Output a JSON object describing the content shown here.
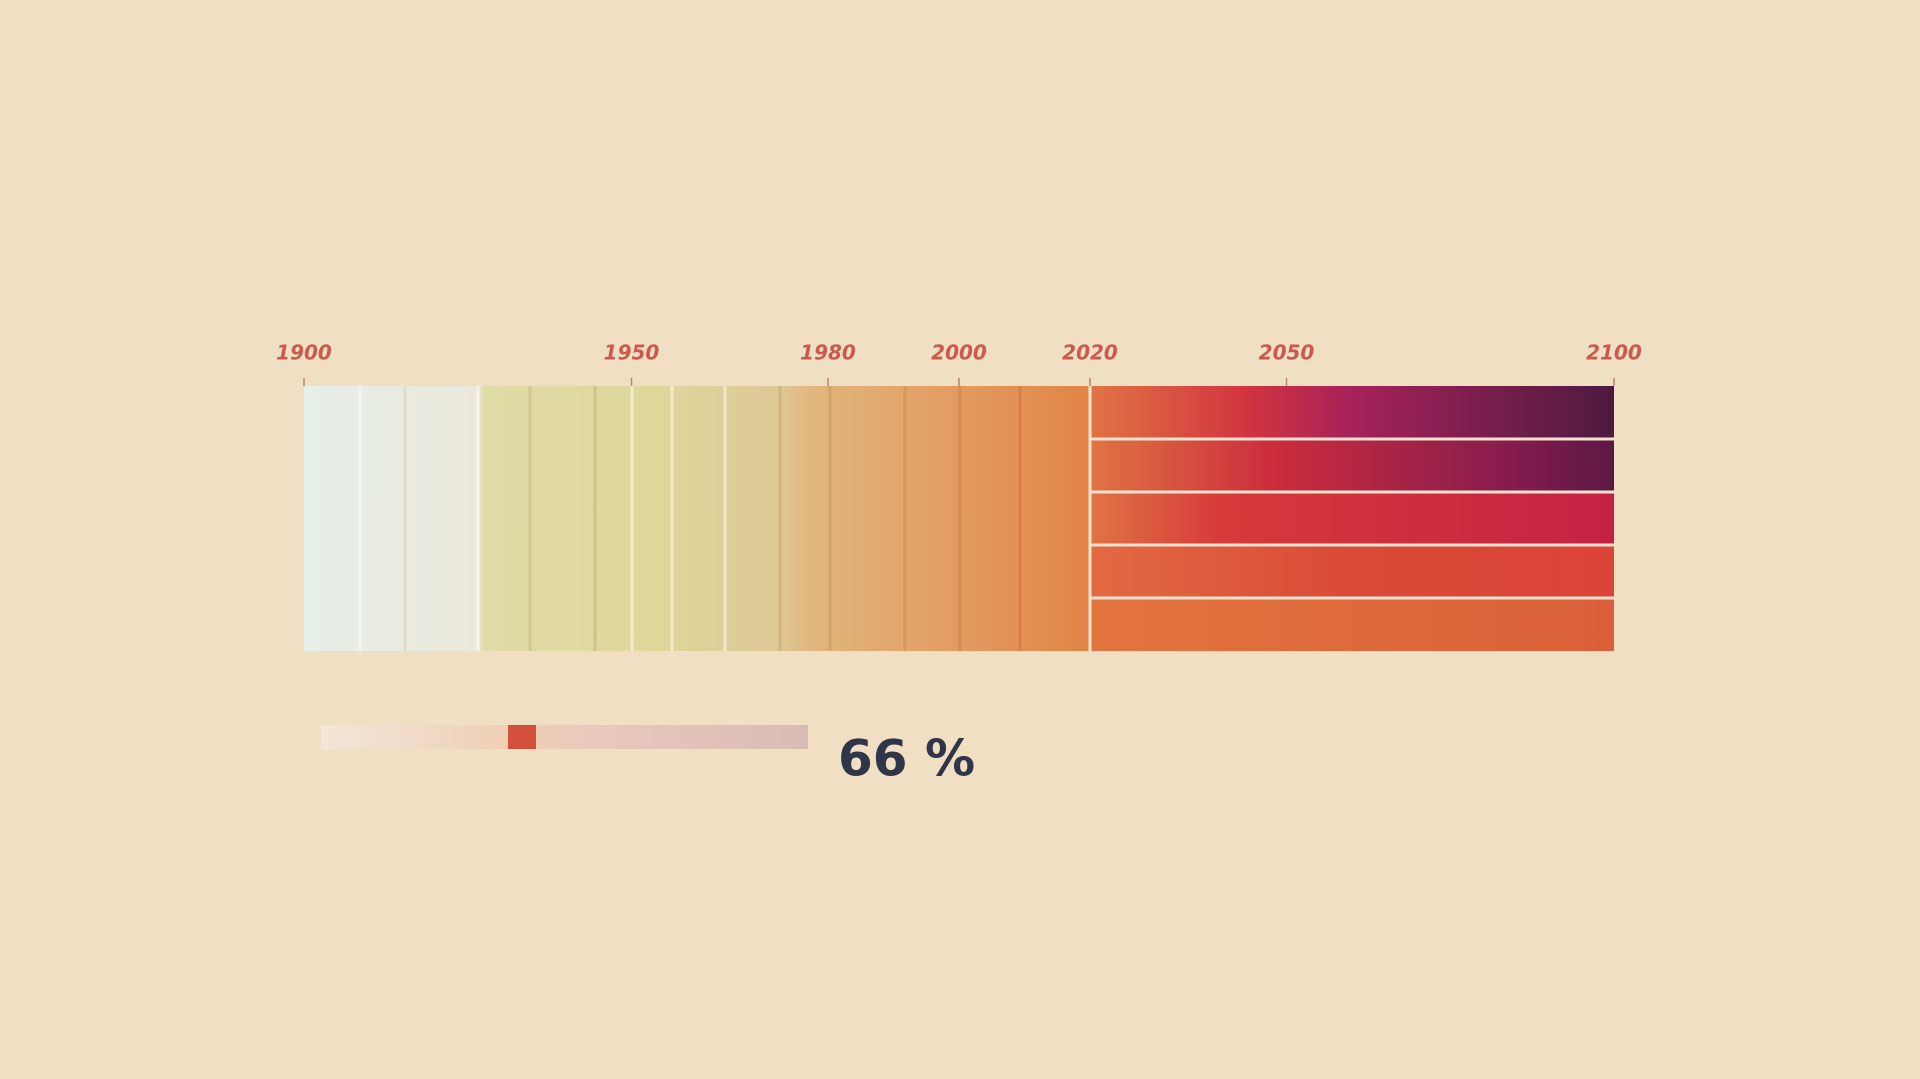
{
  "chart_data": {
    "type": "stripes",
    "xlim": [
      1900,
      2100
    ],
    "xticks": [
      1900,
      1950,
      1980,
      2000,
      2020,
      2050,
      2100
    ],
    "readout": "66 %"
  }
}
